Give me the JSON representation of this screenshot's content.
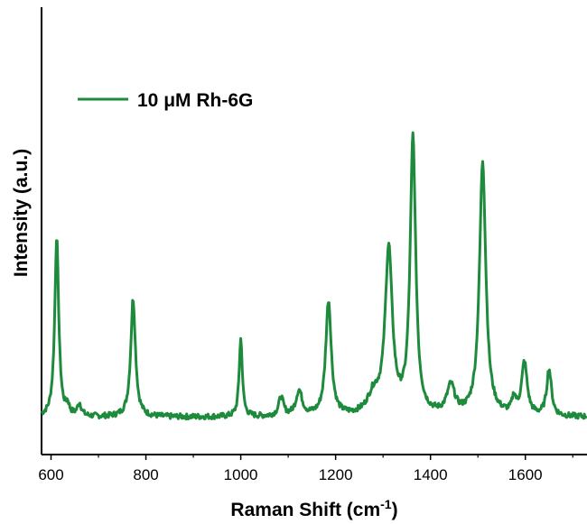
{
  "chart_data": {
    "type": "line",
    "xlabel": "Raman Shift (cm",
    "xlabel_sup": "-1",
    "xlabel_suffix": ")",
    "ylabel": "Intensity (a.u.)",
    "xlim": [
      580,
      1730
    ],
    "ylim": [
      -0.12,
      1.32
    ],
    "x_ticks": [
      600,
      800,
      1000,
      1200,
      1400,
      1600
    ],
    "y_ticks_shown": false,
    "grid": false,
    "legend_position": "top-left",
    "line_color": "#1e8a3c",
    "series": [
      {
        "name": "10 μM Rh-6G",
        "peaks": [
          {
            "x": 612,
            "height": 0.58,
            "width": 5
          },
          {
            "x": 635,
            "height": 0.03,
            "width": 4
          },
          {
            "x": 660,
            "height": 0.04,
            "width": 5
          },
          {
            "x": 773,
            "height": 0.38,
            "width": 6
          },
          {
            "x": 1000,
            "height": 0.25,
            "width": 4
          },
          {
            "x": 1085,
            "height": 0.06,
            "width": 6
          },
          {
            "x": 1123,
            "height": 0.08,
            "width": 8
          },
          {
            "x": 1185,
            "height": 0.37,
            "width": 7
          },
          {
            "x": 1280,
            "height": 0.06,
            "width": 15
          },
          {
            "x": 1312,
            "height": 0.53,
            "width": 9
          },
          {
            "x": 1363,
            "height": 0.89,
            "width": 7
          },
          {
            "x": 1443,
            "height": 0.09,
            "width": 10
          },
          {
            "x": 1510,
            "height": 0.82,
            "width": 8
          },
          {
            "x": 1576,
            "height": 0.05,
            "width": 5
          },
          {
            "x": 1598,
            "height": 0.17,
            "width": 7
          },
          {
            "x": 1650,
            "height": 0.15,
            "width": 6
          }
        ],
        "baseline": 0.0
      }
    ]
  }
}
